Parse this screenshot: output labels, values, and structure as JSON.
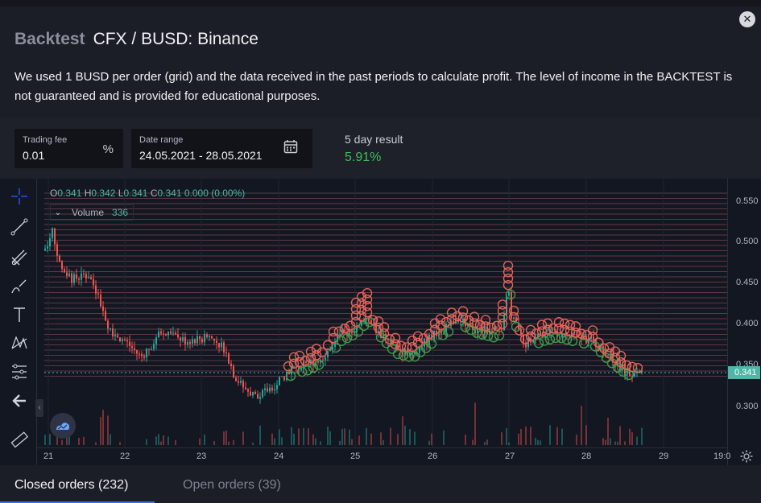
{
  "header": {
    "title_prefix": "Backtest",
    "title_main": "CFX / BUSD: Binance",
    "description": "We used 1 BUSD per order (grid) and the data received in the past periods to calculate profit. The level of income in the BACKTEST is not guaranteed and is provided for educational purposes."
  },
  "params": {
    "trading_fee": {
      "label": "Trading fee",
      "value": "0.01",
      "suffix": "%"
    },
    "date_range": {
      "label": "Date range",
      "value": "24.05.2021 - 28.05.2021"
    },
    "result": {
      "label": "5 day result",
      "value": "5.91%"
    }
  },
  "chart": {
    "legend": {
      "o_key": "O",
      "o": "0.341",
      "h_key": "H",
      "h": "0.342",
      "l_key": "L",
      "l": "0.341",
      "c_key": "C",
      "c": "0.341",
      "change": "0.000 (0.00%)"
    },
    "volume": {
      "label": "Volume",
      "value": "336"
    },
    "current_price": "0.341",
    "y_ticks": [
      "0.550",
      "0.500",
      "0.450",
      "0.400",
      "0.350",
      "0.300"
    ],
    "x_ticks": [
      "21",
      "22",
      "23",
      "24",
      "25",
      "26",
      "27",
      "28",
      "29",
      "19:0"
    ],
    "colors": {
      "up": "#26a69a",
      "down": "#ef5350",
      "buy_marker": "#3d9b4a",
      "sell_marker": "#e0645a"
    }
  },
  "toolbar": {
    "tools": [
      "crosshair-icon",
      "trend-line-icon",
      "fib-icon",
      "brush-icon",
      "text-icon",
      "pattern-icon",
      "measure-icon",
      "back-arrow-icon",
      "ruler-icon"
    ]
  },
  "tabs": [
    {
      "label": "Closed orders (232)"
    },
    {
      "label": "Open orders (39)"
    }
  ]
}
